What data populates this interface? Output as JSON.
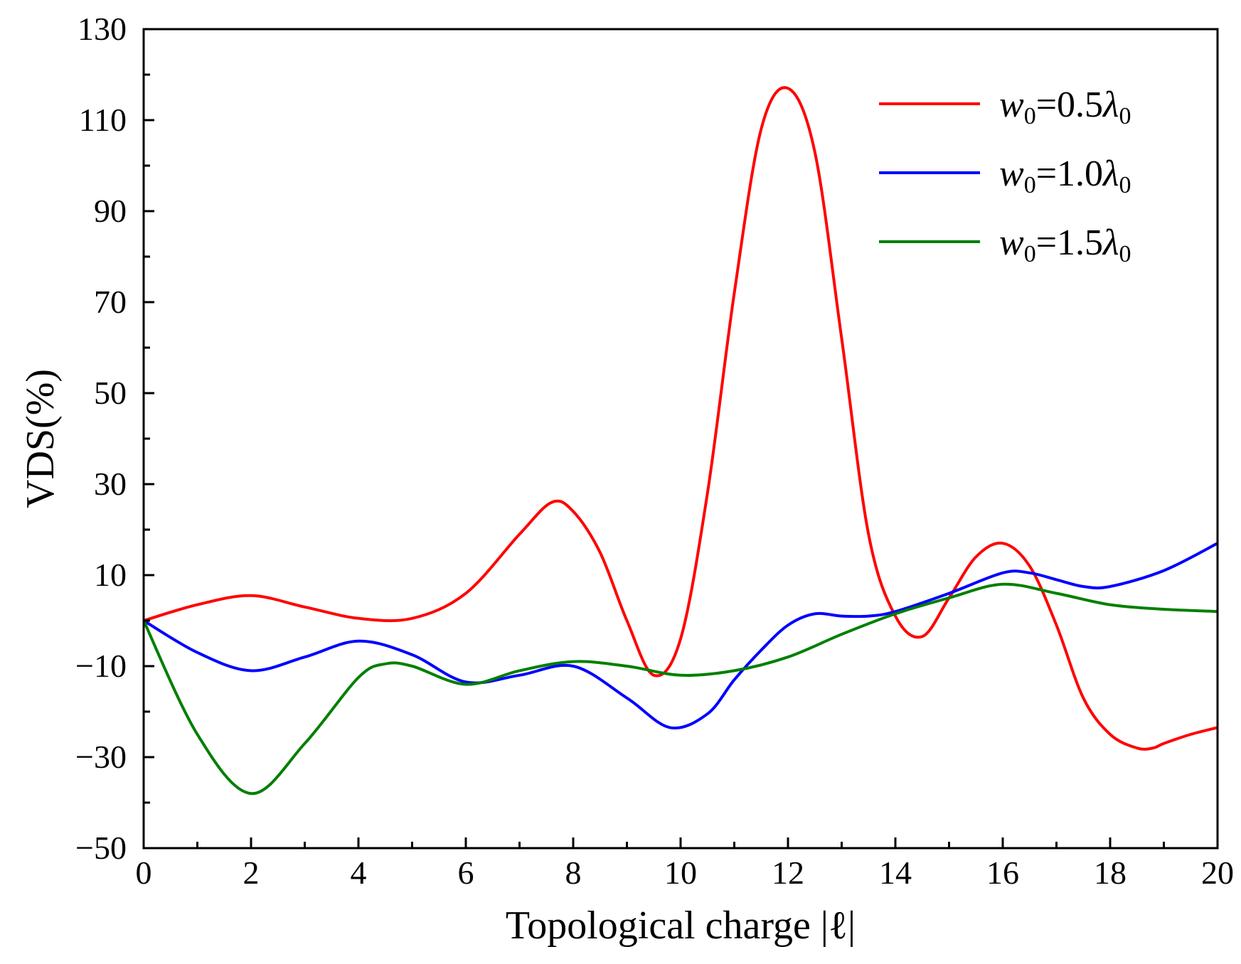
{
  "chart_data": {
    "type": "line",
    "title": "",
    "xlabel": "Topological charge |ℓ|",
    "ylabel": "VDS(%)",
    "xlim": [
      0,
      20
    ],
    "ylim": [
      -50,
      130
    ],
    "xticks": [
      0,
      2,
      4,
      6,
      8,
      10,
      12,
      14,
      16,
      18,
      20
    ],
    "yticks": [
      -50,
      -30,
      -10,
      10,
      30,
      50,
      70,
      90,
      110,
      130
    ],
    "xtick_labels": [
      "0",
      "2",
      "4",
      "6",
      "8",
      "10",
      "12",
      "14",
      "16",
      "18",
      "20"
    ],
    "ytick_labels": [
      "−50",
      "−30",
      "−10",
      "10",
      "30",
      "50",
      "70",
      "90",
      "110",
      "130"
    ],
    "grid": false,
    "legend_position": "top-right",
    "series": [
      {
        "name": "w0=0.5λ0",
        "legend_parts": {
          "var": "w",
          "sub": "0",
          "mid": "=0.5",
          "sym": "λ",
          "sub2": "0"
        },
        "color": "#ff0000",
        "x": [
          0,
          1,
          2,
          3,
          4,
          5,
          6,
          7,
          7.6,
          8,
          8.5,
          9,
          9.5,
          10,
          10.5,
          11,
          11.5,
          12,
          12.5,
          13,
          13.5,
          14,
          14.5,
          15,
          15.5,
          16,
          16.5,
          17,
          17.5,
          18,
          18.5,
          18.8,
          19,
          19.5,
          20
        ],
        "y": [
          0,
          3.5,
          5.5,
          3,
          0.5,
          0.5,
          6,
          19,
          26,
          24,
          15,
          0,
          -12,
          -4,
          28,
          72,
          108,
          117,
          103,
          62,
          19,
          1,
          -3.5,
          5,
          14,
          17,
          12,
          -1,
          -17,
          -25,
          -28,
          -28,
          -27,
          -25,
          -23.5
        ]
      },
      {
        "name": "w0=1.0λ0",
        "legend_parts": {
          "var": "w",
          "sub": "0",
          "mid": "=1.0",
          "sym": "λ",
          "sub2": "0"
        },
        "color": "#0000ff",
        "x": [
          0,
          1,
          2,
          3,
          4,
          5,
          6,
          7,
          8,
          9,
          9.8,
          10.5,
          11,
          11.5,
          12,
          12.5,
          13,
          13.5,
          14,
          15,
          16,
          16.5,
          17,
          17.5,
          18,
          19,
          20
        ],
        "y": [
          0,
          -7,
          -11,
          -8,
          -4.5,
          -7.5,
          -13.5,
          -12,
          -10,
          -17,
          -23.5,
          -20.5,
          -13,
          -6.5,
          -1,
          1.5,
          1,
          1,
          2,
          6,
          10.5,
          10.5,
          9,
          7.5,
          7.5,
          11,
          17
        ]
      },
      {
        "name": "w0=1.5λ0",
        "legend_parts": {
          "var": "w",
          "sub": "0",
          "mid": "=1.5",
          "sym": "λ",
          "sub2": "0"
        },
        "color": "#007f00",
        "x": [
          0,
          1,
          2,
          3,
          4,
          4.5,
          5,
          6,
          7,
          8,
          9,
          10,
          11,
          12,
          13,
          14,
          15,
          16,
          17,
          18,
          19,
          20
        ],
        "y": [
          0,
          -25,
          -38,
          -27,
          -12.5,
          -9.5,
          -10,
          -14,
          -11,
          -9,
          -10,
          -12,
          -11,
          -8,
          -3,
          1.5,
          5,
          8,
          6,
          3.5,
          2.5,
          2
        ]
      }
    ]
  }
}
